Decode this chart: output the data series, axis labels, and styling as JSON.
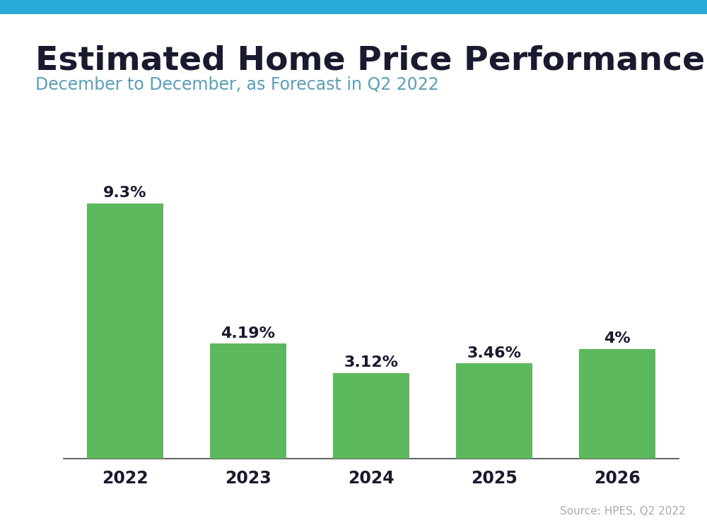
{
  "title": "Estimated Home Price Performance",
  "subtitle": "December to December, as Forecast in Q2 2022",
  "source": "Source: HPES, Q2 2022",
  "categories": [
    "2022",
    "2023",
    "2024",
    "2025",
    "2026"
  ],
  "values": [
    9.3,
    4.19,
    3.12,
    3.46,
    4.0
  ],
  "labels": [
    "9.3%",
    "4.19%",
    "3.12%",
    "3.46%",
    "4%"
  ],
  "bar_color": "#5cb85c",
  "title_color": "#1a1a2e",
  "subtitle_color": "#5a9eb8",
  "source_color": "#aaaaaa",
  "background_color": "#ffffff",
  "top_bar_color": "#29acd9",
  "ylim": [
    0,
    11.5
  ],
  "title_fontsize": 34,
  "subtitle_fontsize": 17,
  "label_fontsize": 16,
  "tick_fontsize": 17,
  "source_fontsize": 11,
  "bar_width": 0.62
}
